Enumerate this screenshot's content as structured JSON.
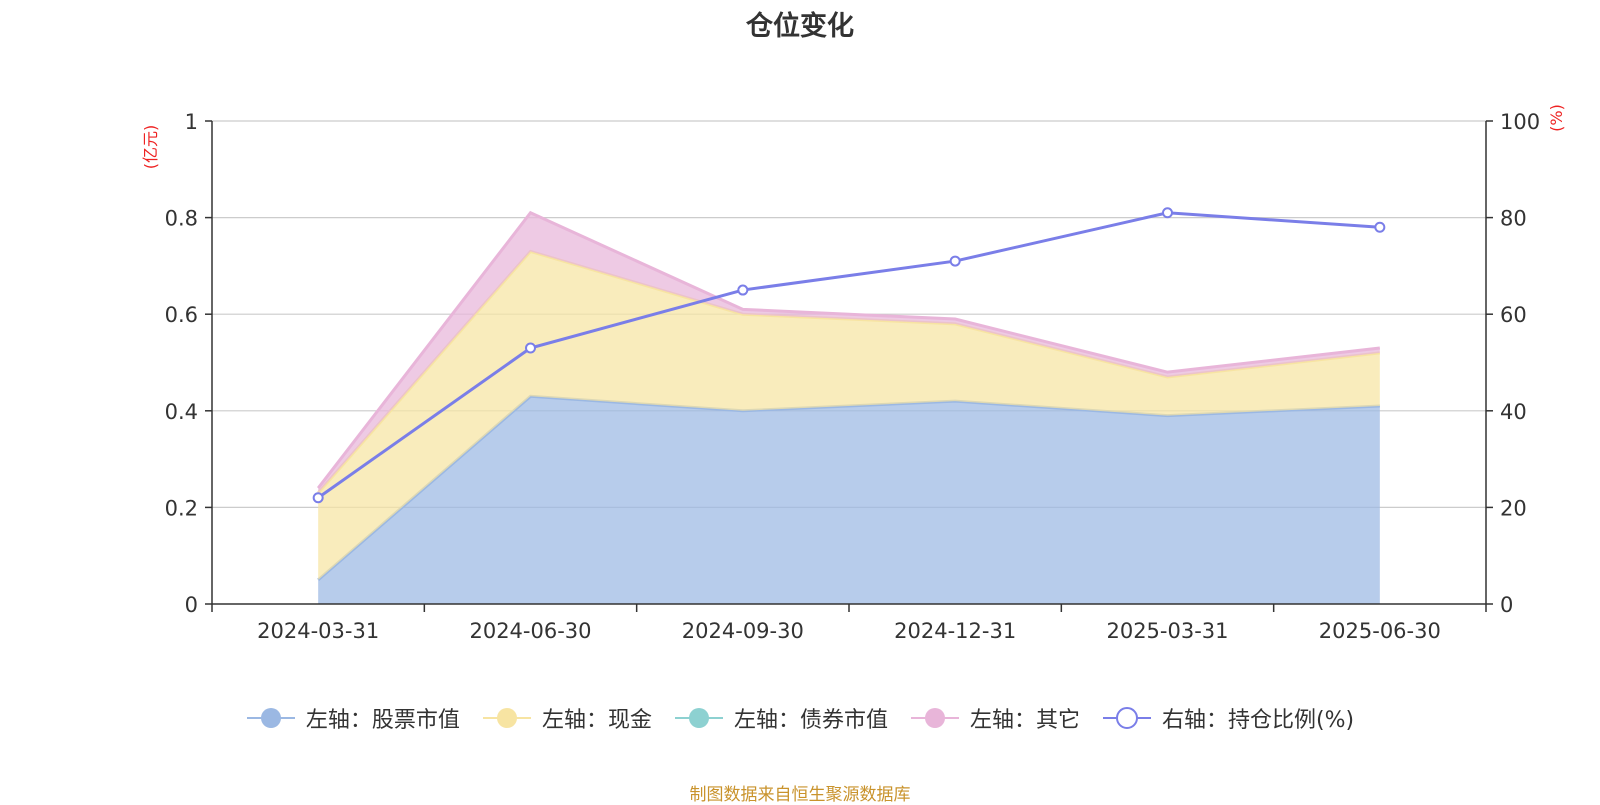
{
  "chart_data": {
    "type": "area",
    "title": "仓位变化",
    "categories": [
      "2024-03-31",
      "2024-06-30",
      "2024-09-30",
      "2024-12-31",
      "2025-03-31",
      "2025-06-30"
    ],
    "y_left": {
      "unit": "(亿元)",
      "ylim": [
        0,
        1
      ],
      "ticks": [
        "0",
        "0.2",
        "0.4",
        "0.6",
        "0.8",
        "1"
      ]
    },
    "y_right": {
      "unit": "(%)",
      "ylim": [
        0,
        100
      ],
      "ticks": [
        "0",
        "20",
        "40",
        "60",
        "80",
        "100"
      ]
    },
    "stacked": true,
    "grid": true,
    "legend_position": "bottom",
    "series": [
      {
        "name": "左轴：股票市值",
        "axis": "left",
        "style": "area",
        "color": "#9bb8e3",
        "values": [
          0.05,
          0.43,
          0.4,
          0.42,
          0.39,
          0.41
        ]
      },
      {
        "name": "左轴：现金",
        "axis": "left",
        "style": "area",
        "color": "#f7e4a2",
        "values": [
          0.18,
          0.3,
          0.2,
          0.16,
          0.08,
          0.11
        ]
      },
      {
        "name": "左轴：债券市值",
        "axis": "left",
        "style": "area",
        "color": "#8dd1d1",
        "values": [
          0,
          0,
          0,
          0,
          0,
          0
        ]
      },
      {
        "name": "左轴：其它",
        "axis": "left",
        "style": "area",
        "color": "#e8b5d9",
        "values": [
          0.01,
          0.08,
          0.01,
          0.01,
          0.01,
          0.01
        ]
      },
      {
        "name": "右轴：持仓比例(%)",
        "axis": "right",
        "style": "line",
        "color": "#7a7ee8",
        "values": [
          22,
          53,
          65,
          71,
          81,
          78
        ]
      }
    ]
  },
  "source_note": "制图数据来自恒生聚源数据库"
}
